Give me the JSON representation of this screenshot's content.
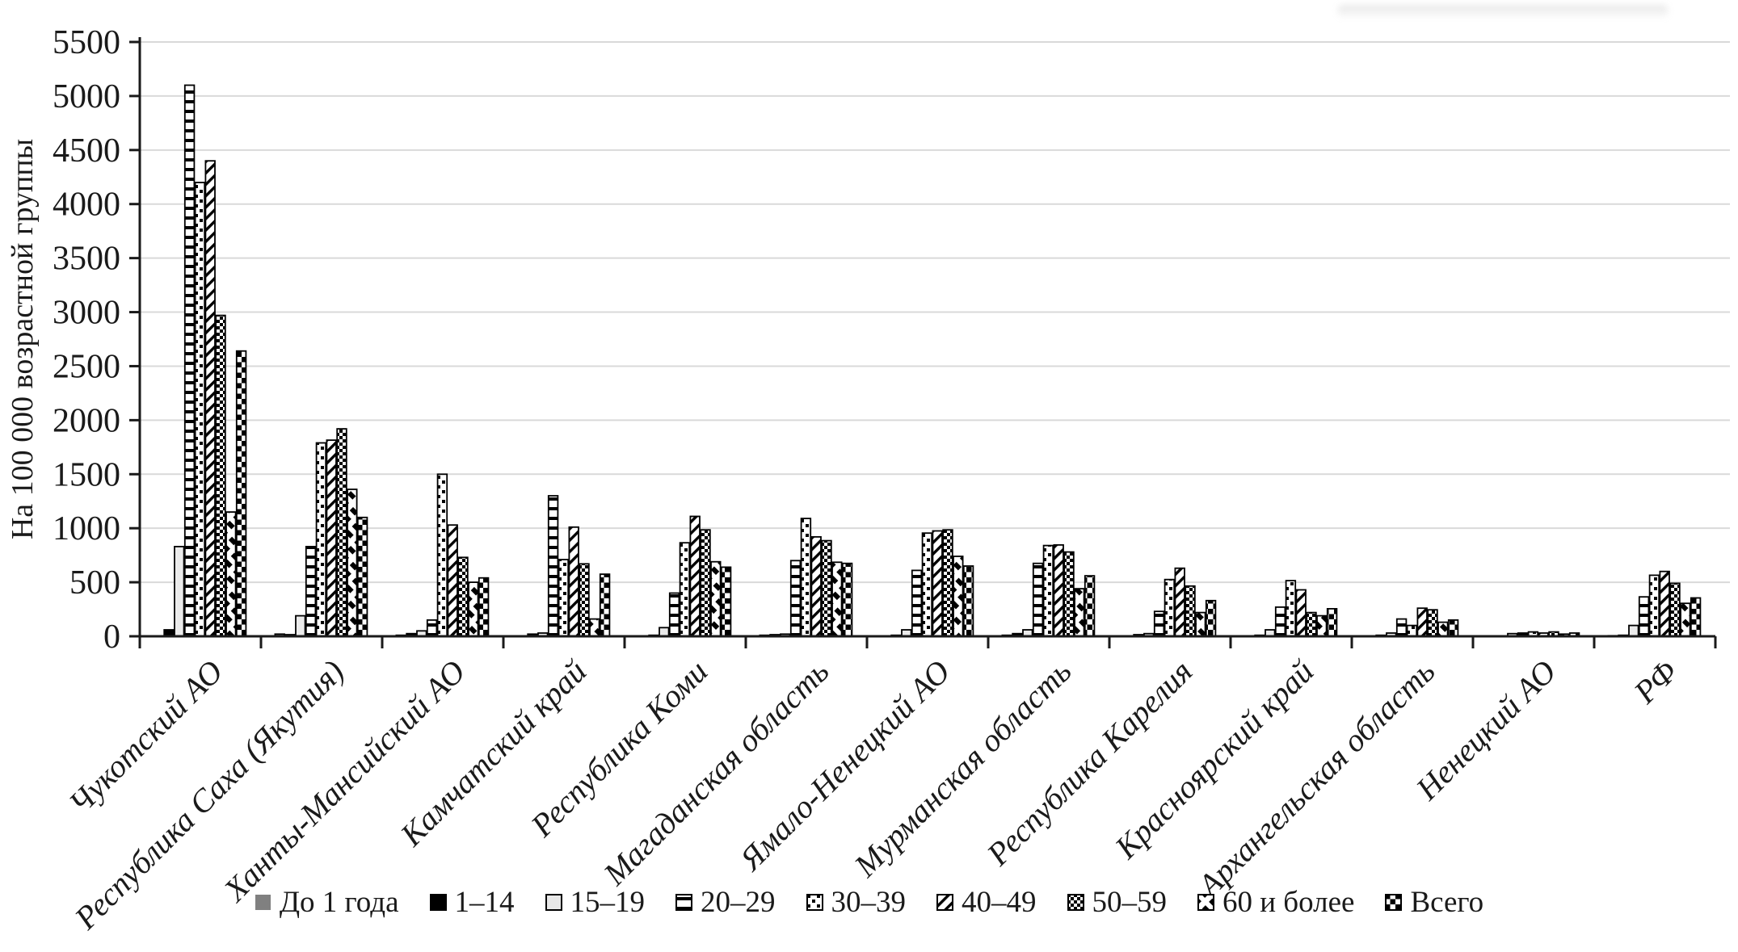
{
  "chart_data": {
    "type": "bar",
    "title": "",
    "ylabel": "На 100 000 возрастной группы",
    "xlabel": "",
    "ylim": [
      0,
      5500
    ],
    "ytick_step": 500,
    "ytick_labels": [
      "0",
      "500",
      "1000",
      "1500",
      "2000",
      "2500",
      "3000",
      "3500",
      "4000",
      "4500",
      "5000",
      "5500"
    ],
    "grid": "horizontal",
    "legend_position": "bottom",
    "categories": [
      "Чукотский АО",
      "Республика Саха (Якутия)",
      "Ханты-Мансийский АО",
      "Камчатский край",
      "Республика Коми",
      "Магаданская область",
      "Ямало-Ненецкий АО",
      "Мурманская область",
      "Республика Карелия",
      "Красноярский край",
      "Архангельская область",
      "Ненецкий АО",
      "РФ"
    ],
    "series": [
      {
        "name": "До 1 года",
        "pattern": "solid-gray",
        "values": [
          0,
          20,
          10,
          0,
          0,
          10,
          0,
          10,
          0,
          0,
          0,
          0,
          5
        ]
      },
      {
        "name": "1–14",
        "pattern": "solid-black",
        "values": [
          60,
          15,
          25,
          20,
          10,
          15,
          10,
          25,
          15,
          10,
          10,
          0,
          10
        ]
      },
      {
        "name": "15–19",
        "pattern": "light",
        "values": [
          830,
          190,
          50,
          30,
          80,
          20,
          60,
          60,
          25,
          60,
          30,
          25,
          100
        ]
      },
      {
        "name": "20–29",
        "pattern": "horizontal-lines",
        "values": [
          5100,
          830,
          150,
          1300,
          400,
          700,
          610,
          675,
          230,
          270,
          160,
          30,
          365
        ]
      },
      {
        "name": "30–39",
        "pattern": "dots",
        "values": [
          4200,
          1790,
          1500,
          710,
          865,
          1090,
          955,
          840,
          525,
          515,
          100,
          40,
          565
        ]
      },
      {
        "name": "40–49",
        "pattern": "diagonal",
        "values": [
          4400,
          1815,
          1030,
          1010,
          1110,
          920,
          975,
          845,
          630,
          430,
          260,
          30,
          600
        ]
      },
      {
        "name": "50–59",
        "pattern": "checker",
        "values": [
          2970,
          1920,
          730,
          670,
          985,
          885,
          985,
          780,
          465,
          220,
          245,
          40,
          490
        ]
      },
      {
        "name": "60 и более",
        "pattern": "diagonal-blocks",
        "values": [
          1150,
          1360,
          500,
          160,
          690,
          685,
          740,
          440,
          220,
          190,
          130,
          20,
          305
        ]
      },
      {
        "name": "Всего",
        "pattern": "block-checker",
        "values": [
          2640,
          1100,
          540,
          575,
          640,
          675,
          650,
          560,
          330,
          255,
          150,
          30,
          355
        ]
      }
    ]
  },
  "colors": {
    "bar_stroke": "#000000",
    "grid": "#d9d9d9",
    "axis": "#1a1a1a",
    "gray_fill": "#808080",
    "black_fill": "#000000",
    "light_fill": "#ebebeb",
    "text": "#1a1a1a"
  }
}
